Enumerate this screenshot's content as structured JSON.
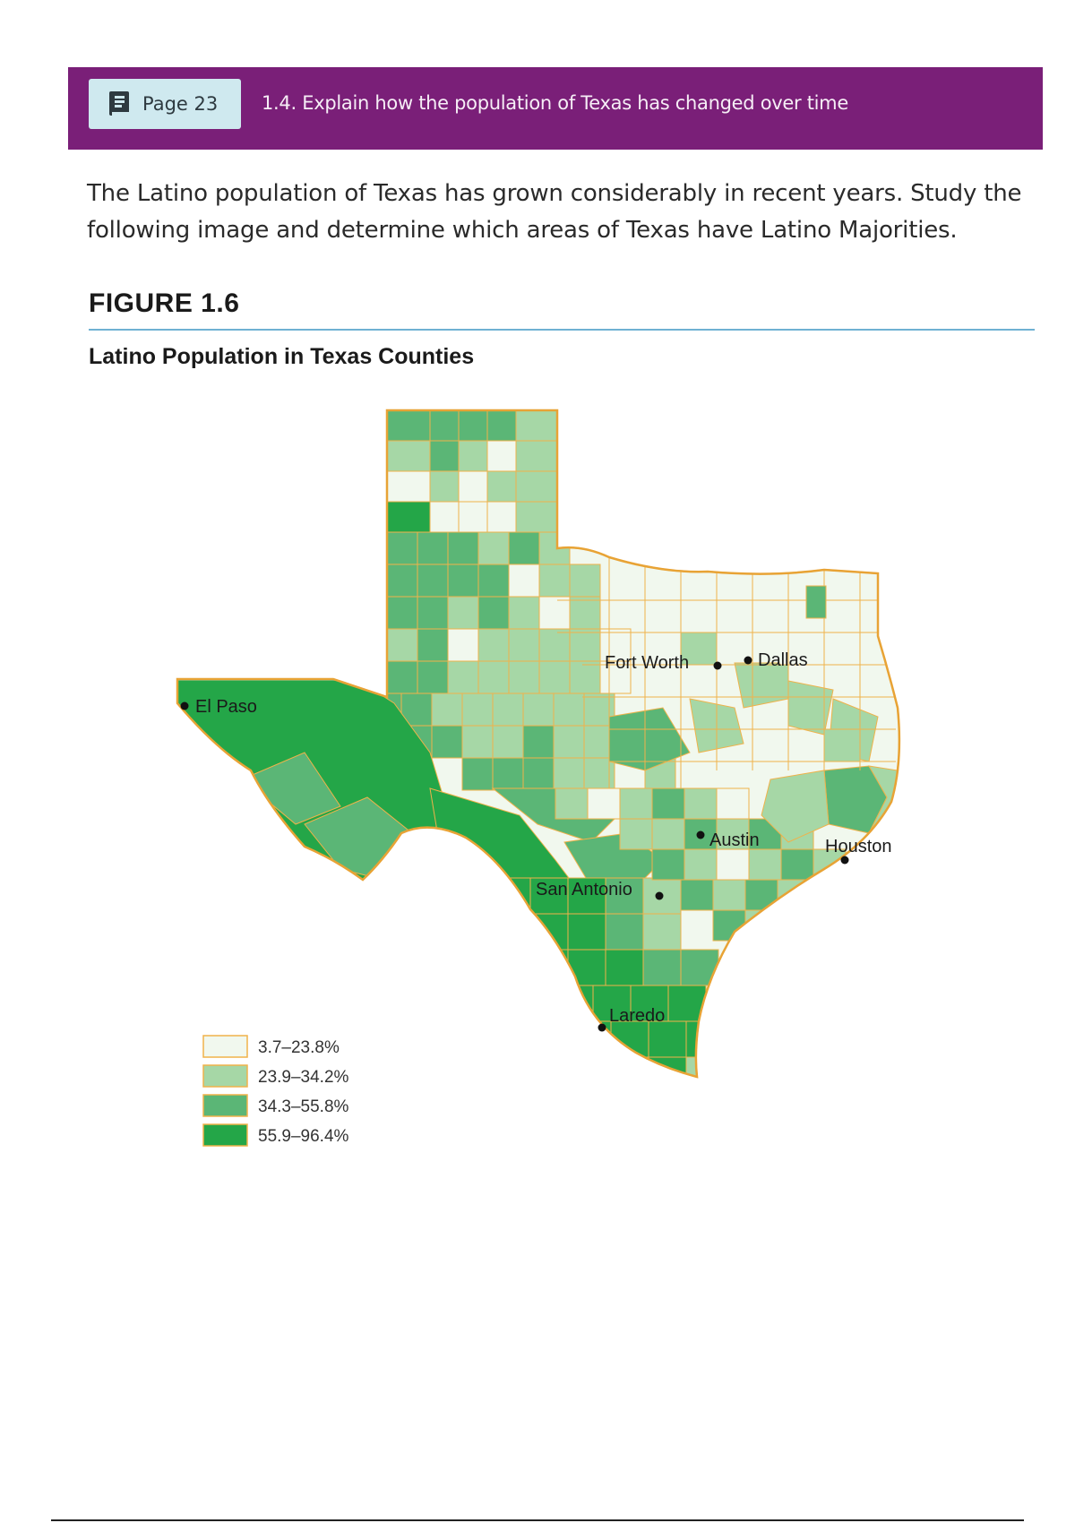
{
  "banner": {
    "page_label": "Page 23",
    "objective": "1.4. Explain how the population of Texas has changed over time",
    "icon": "book-icon"
  },
  "intro_text": "The Latino population of Texas has grown considerably in recent years. Study the following image and determine which areas of Texas have Latino Majorities.",
  "figure": {
    "label": "FIGURE 1.6",
    "title": "Latino Population in Texas Counties"
  },
  "map": {
    "colors": {
      "c1": "#f1f8ee",
      "c2": "#a6d7a6",
      "c3": "#5bb676",
      "c4": "#24a648",
      "border": "#f0b24a"
    },
    "cities": [
      {
        "name": "El Paso"
      },
      {
        "name": "Fort Worth"
      },
      {
        "name": "Dallas"
      },
      {
        "name": "Austin"
      },
      {
        "name": "Houston"
      },
      {
        "name": "San Antonio"
      },
      {
        "name": "Laredo"
      }
    ],
    "legend": [
      {
        "label": "3.7–23.8%",
        "color": "#f1f8ee"
      },
      {
        "label": "23.9–34.2%",
        "color": "#a6d7a6"
      },
      {
        "label": "34.3–55.8%",
        "color": "#5bb676"
      },
      {
        "label": "55.9–96.4%",
        "color": "#24a648"
      }
    ]
  }
}
